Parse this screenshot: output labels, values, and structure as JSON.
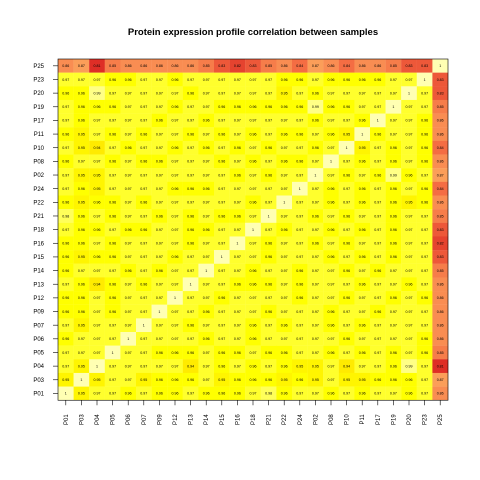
{
  "chart_data": {
    "type": "heatmap",
    "title": "Protein expression profile correlation between samples",
    "xlabel": "",
    "ylabel": "",
    "samples": [
      "P01",
      "P03",
      "P04",
      "P05",
      "P06",
      "P07",
      "P09",
      "P12",
      "P13",
      "P14",
      "P15",
      "P16",
      "P18",
      "P21",
      "P22",
      "P24",
      "P02",
      "P08",
      "P10",
      "P11",
      "P17",
      "P19",
      "P20",
      "P23",
      "P25"
    ],
    "x_categories": [
      "P01",
      "P03",
      "P04",
      "P05",
      "P06",
      "P07",
      "P09",
      "P12",
      "P13",
      "P14",
      "P15",
      "P16",
      "P18",
      "P21",
      "P22",
      "P24",
      "P02",
      "P08",
      "P10",
      "P11",
      "P17",
      "P19",
      "P20",
      "P23",
      "P25"
    ],
    "y_categories_top_to_bottom": [
      "P25",
      "P23",
      "P20",
      "P19",
      "P17",
      "P11",
      "P10",
      "P08",
      "P02",
      "P24",
      "P22",
      "P21",
      "P18",
      "P16",
      "P15",
      "P14",
      "P13",
      "P12",
      "P09",
      "P07",
      "P06",
      "P05",
      "P04",
      "P03",
      "P01"
    ],
    "value_range": [
      0.8,
      1
    ],
    "color_scale": [
      "#d7191c",
      "#f46d43",
      "#fdae61",
      "#ffd700",
      "#ffff00",
      "#ffffb3"
    ],
    "diagonal_value": 1,
    "matrix": [
      [
        1,
        0.95,
        0.97,
        0.97,
        0.96,
        0.97,
        0.96,
        0.96,
        0.97,
        0.96,
        0.96,
        0.96,
        0.97,
        0.98,
        0.96,
        0.97,
        0.97,
        0.96,
        0.97,
        0.96,
        0.97,
        0.97,
        0.96,
        0.97,
        0.86
      ],
      [
        0.95,
        1,
        0.95,
        0.97,
        0.97,
        0.95,
        0.96,
        0.96,
        0.96,
        0.97,
        0.95,
        0.96,
        0.96,
        0.96,
        0.95,
        0.96,
        0.95,
        0.97,
        0.95,
        0.95,
        0.96,
        0.96,
        0.96,
        0.97,
        0.87
      ],
      [
        0.97,
        0.95,
        1,
        0.97,
        0.97,
        0.97,
        0.97,
        0.97,
        0.94,
        0.97,
        0.96,
        0.97,
        0.96,
        0.97,
        0.96,
        0.95,
        0.95,
        0.97,
        0.94,
        0.97,
        0.97,
        0.96,
        0.99,
        0.97,
        0.81
      ],
      [
        0.97,
        0.97,
        0.97,
        1,
        0.97,
        0.97,
        0.96,
        0.96,
        0.96,
        0.97,
        0.96,
        0.96,
        0.97,
        0.96,
        0.96,
        0.97,
        0.97,
        0.96,
        0.97,
        0.96,
        0.97,
        0.96,
        0.97,
        0.96,
        0.85
      ],
      [
        0.96,
        0.97,
        0.97,
        0.97,
        1,
        0.97,
        0.97,
        0.97,
        0.97,
        0.96,
        0.97,
        0.97,
        0.96,
        0.97,
        0.97,
        0.97,
        0.97,
        0.97,
        0.96,
        0.97,
        0.97,
        0.97,
        0.97,
        0.96,
        0.86
      ],
      [
        0.97,
        0.95,
        0.97,
        0.97,
        0.97,
        1,
        0.97,
        0.97,
        0.96,
        0.97,
        0.97,
        0.97,
        0.96,
        0.97,
        0.96,
        0.97,
        0.97,
        0.96,
        0.97,
        0.96,
        0.97,
        0.97,
        0.97,
        0.97,
        0.86
      ],
      [
        0.96,
        0.96,
        0.97,
        0.96,
        0.97,
        0.97,
        1,
        0.97,
        0.97,
        0.96,
        0.97,
        0.97,
        0.97,
        0.96,
        0.97,
        0.97,
        0.97,
        0.96,
        0.97,
        0.97,
        0.96,
        0.97,
        0.97,
        0.97,
        0.86
      ],
      [
        0.96,
        0.96,
        0.97,
        0.96,
        0.97,
        0.97,
        0.97,
        1,
        0.97,
        0.97,
        0.96,
        0.97,
        0.97,
        0.97,
        0.97,
        0.96,
        0.97,
        0.97,
        0.96,
        0.97,
        0.97,
        0.96,
        0.97,
        0.96,
        0.86
      ],
      [
        0.97,
        0.96,
        0.94,
        0.96,
        0.97,
        0.96,
        0.97,
        0.97,
        1,
        0.97,
        0.97,
        0.96,
        0.96,
        0.96,
        0.97,
        0.96,
        0.97,
        0.97,
        0.97,
        0.96,
        0.97,
        0.97,
        0.96,
        0.97,
        0.86
      ],
      [
        0.96,
        0.97,
        0.97,
        0.97,
        0.96,
        0.97,
        0.96,
        0.97,
        0.97,
        1,
        0.97,
        0.97,
        0.96,
        0.97,
        0.97,
        0.96,
        0.97,
        0.97,
        0.96,
        0.97,
        0.96,
        0.97,
        0.97,
        0.97,
        0.85
      ],
      [
        0.96,
        0.95,
        0.96,
        0.96,
        0.97,
        0.97,
        0.97,
        0.96,
        0.97,
        0.97,
        1,
        0.97,
        0.97,
        0.96,
        0.97,
        0.97,
        0.97,
        0.96,
        0.97,
        0.96,
        0.97,
        0.96,
        0.97,
        0.97,
        0.83
      ],
      [
        0.96,
        0.96,
        0.97,
        0.96,
        0.97,
        0.97,
        0.97,
        0.97,
        0.96,
        0.97,
        0.97,
        1,
        0.97,
        0.96,
        0.97,
        0.97,
        0.96,
        0.97,
        0.96,
        0.97,
        0.97,
        0.96,
        0.97,
        0.97,
        0.82
      ],
      [
        0.97,
        0.96,
        0.96,
        0.97,
        0.96,
        0.96,
        0.97,
        0.97,
        0.96,
        0.96,
        0.97,
        0.97,
        1,
        0.97,
        0.96,
        0.97,
        0.97,
        0.96,
        0.97,
        0.96,
        0.97,
        0.96,
        0.97,
        0.97,
        0.83
      ],
      [
        0.98,
        0.96,
        0.97,
        0.96,
        0.97,
        0.97,
        0.96,
        0.97,
        0.96,
        0.97,
        0.96,
        0.96,
        0.97,
        1,
        0.97,
        0.97,
        0.96,
        0.97,
        0.96,
        0.97,
        0.97,
        0.96,
        0.97,
        0.97,
        0.85
      ],
      [
        0.96,
        0.95,
        0.96,
        0.96,
        0.97,
        0.96,
        0.97,
        0.97,
        0.97,
        0.97,
        0.97,
        0.97,
        0.96,
        0.97,
        1,
        0.97,
        0.97,
        0.96,
        0.97,
        0.96,
        0.97,
        0.96,
        0.95,
        0.96,
        0.86
      ],
      [
        0.97,
        0.96,
        0.95,
        0.97,
        0.97,
        0.97,
        0.97,
        0.96,
        0.96,
        0.96,
        0.97,
        0.97,
        0.97,
        0.97,
        0.97,
        1,
        0.97,
        0.96,
        0.97,
        0.96,
        0.97,
        0.96,
        0.97,
        0.96,
        0.84
      ],
      [
        0.97,
        0.95,
        0.95,
        0.97,
        0.97,
        0.97,
        0.97,
        0.97,
        0.97,
        0.97,
        0.97,
        0.96,
        0.97,
        0.96,
        0.97,
        0.97,
        1,
        0.97,
        0.96,
        0.97,
        0.96,
        0.99,
        0.96,
        0.97,
        0.87
      ],
      [
        0.96,
        0.97,
        0.97,
        0.96,
        0.97,
        0.96,
        0.96,
        0.97,
        0.97,
        0.97,
        0.96,
        0.97,
        0.96,
        0.97,
        0.96,
        0.96,
        0.97,
        1,
        0.97,
        0.96,
        0.97,
        0.96,
        0.97,
        0.96,
        0.86
      ],
      [
        0.97,
        0.95,
        0.94,
        0.97,
        0.96,
        0.97,
        0.97,
        0.96,
        0.97,
        0.96,
        0.97,
        0.96,
        0.97,
        0.96,
        0.97,
        0.97,
        0.96,
        0.97,
        1,
        0.95,
        0.97,
        0.96,
        0.97,
        0.96,
        0.84
      ],
      [
        0.96,
        0.95,
        0.97,
        0.96,
        0.97,
        0.96,
        0.97,
        0.97,
        0.96,
        0.97,
        0.96,
        0.97,
        0.96,
        0.97,
        0.96,
        0.96,
        0.97,
        0.96,
        0.95,
        1,
        0.96,
        0.97,
        0.97,
        0.96,
        0.86
      ],
      [
        0.97,
        0.96,
        0.97,
        0.97,
        0.97,
        0.97,
        0.96,
        0.97,
        0.97,
        0.96,
        0.97,
        0.97,
        0.97,
        0.97,
        0.97,
        0.97,
        0.96,
        0.97,
        0.97,
        0.96,
        1,
        0.97,
        0.97,
        0.96,
        0.86
      ],
      [
        0.97,
        0.96,
        0.96,
        0.96,
        0.97,
        0.97,
        0.97,
        0.96,
        0.97,
        0.97,
        0.96,
        0.96,
        0.96,
        0.96,
        0.96,
        0.96,
        0.99,
        0.96,
        0.96,
        0.97,
        0.97,
        1,
        0.97,
        0.97,
        0.85
      ],
      [
        0.96,
        0.96,
        0.99,
        0.97,
        0.97,
        0.97,
        0.97,
        0.97,
        0.96,
        0.97,
        0.97,
        0.97,
        0.97,
        0.97,
        0.95,
        0.97,
        0.96,
        0.97,
        0.97,
        0.97,
        0.97,
        0.97,
        1,
        0.97,
        0.83
      ],
      [
        0.97,
        0.97,
        0.97,
        0.96,
        0.96,
        0.97,
        0.97,
        0.96,
        0.97,
        0.97,
        0.97,
        0.97,
        0.97,
        0.97,
        0.96,
        0.96,
        0.97,
        0.96,
        0.96,
        0.96,
        0.96,
        0.97,
        0.97,
        1,
        0.83
      ],
      [
        0.86,
        0.87,
        0.81,
        0.85,
        0.86,
        0.86,
        0.86,
        0.86,
        0.86,
        0.85,
        0.83,
        0.82,
        0.83,
        0.85,
        0.86,
        0.84,
        0.87,
        0.86,
        0.84,
        0.86,
        0.86,
        0.85,
        0.83,
        0.83,
        1
      ]
    ]
  }
}
